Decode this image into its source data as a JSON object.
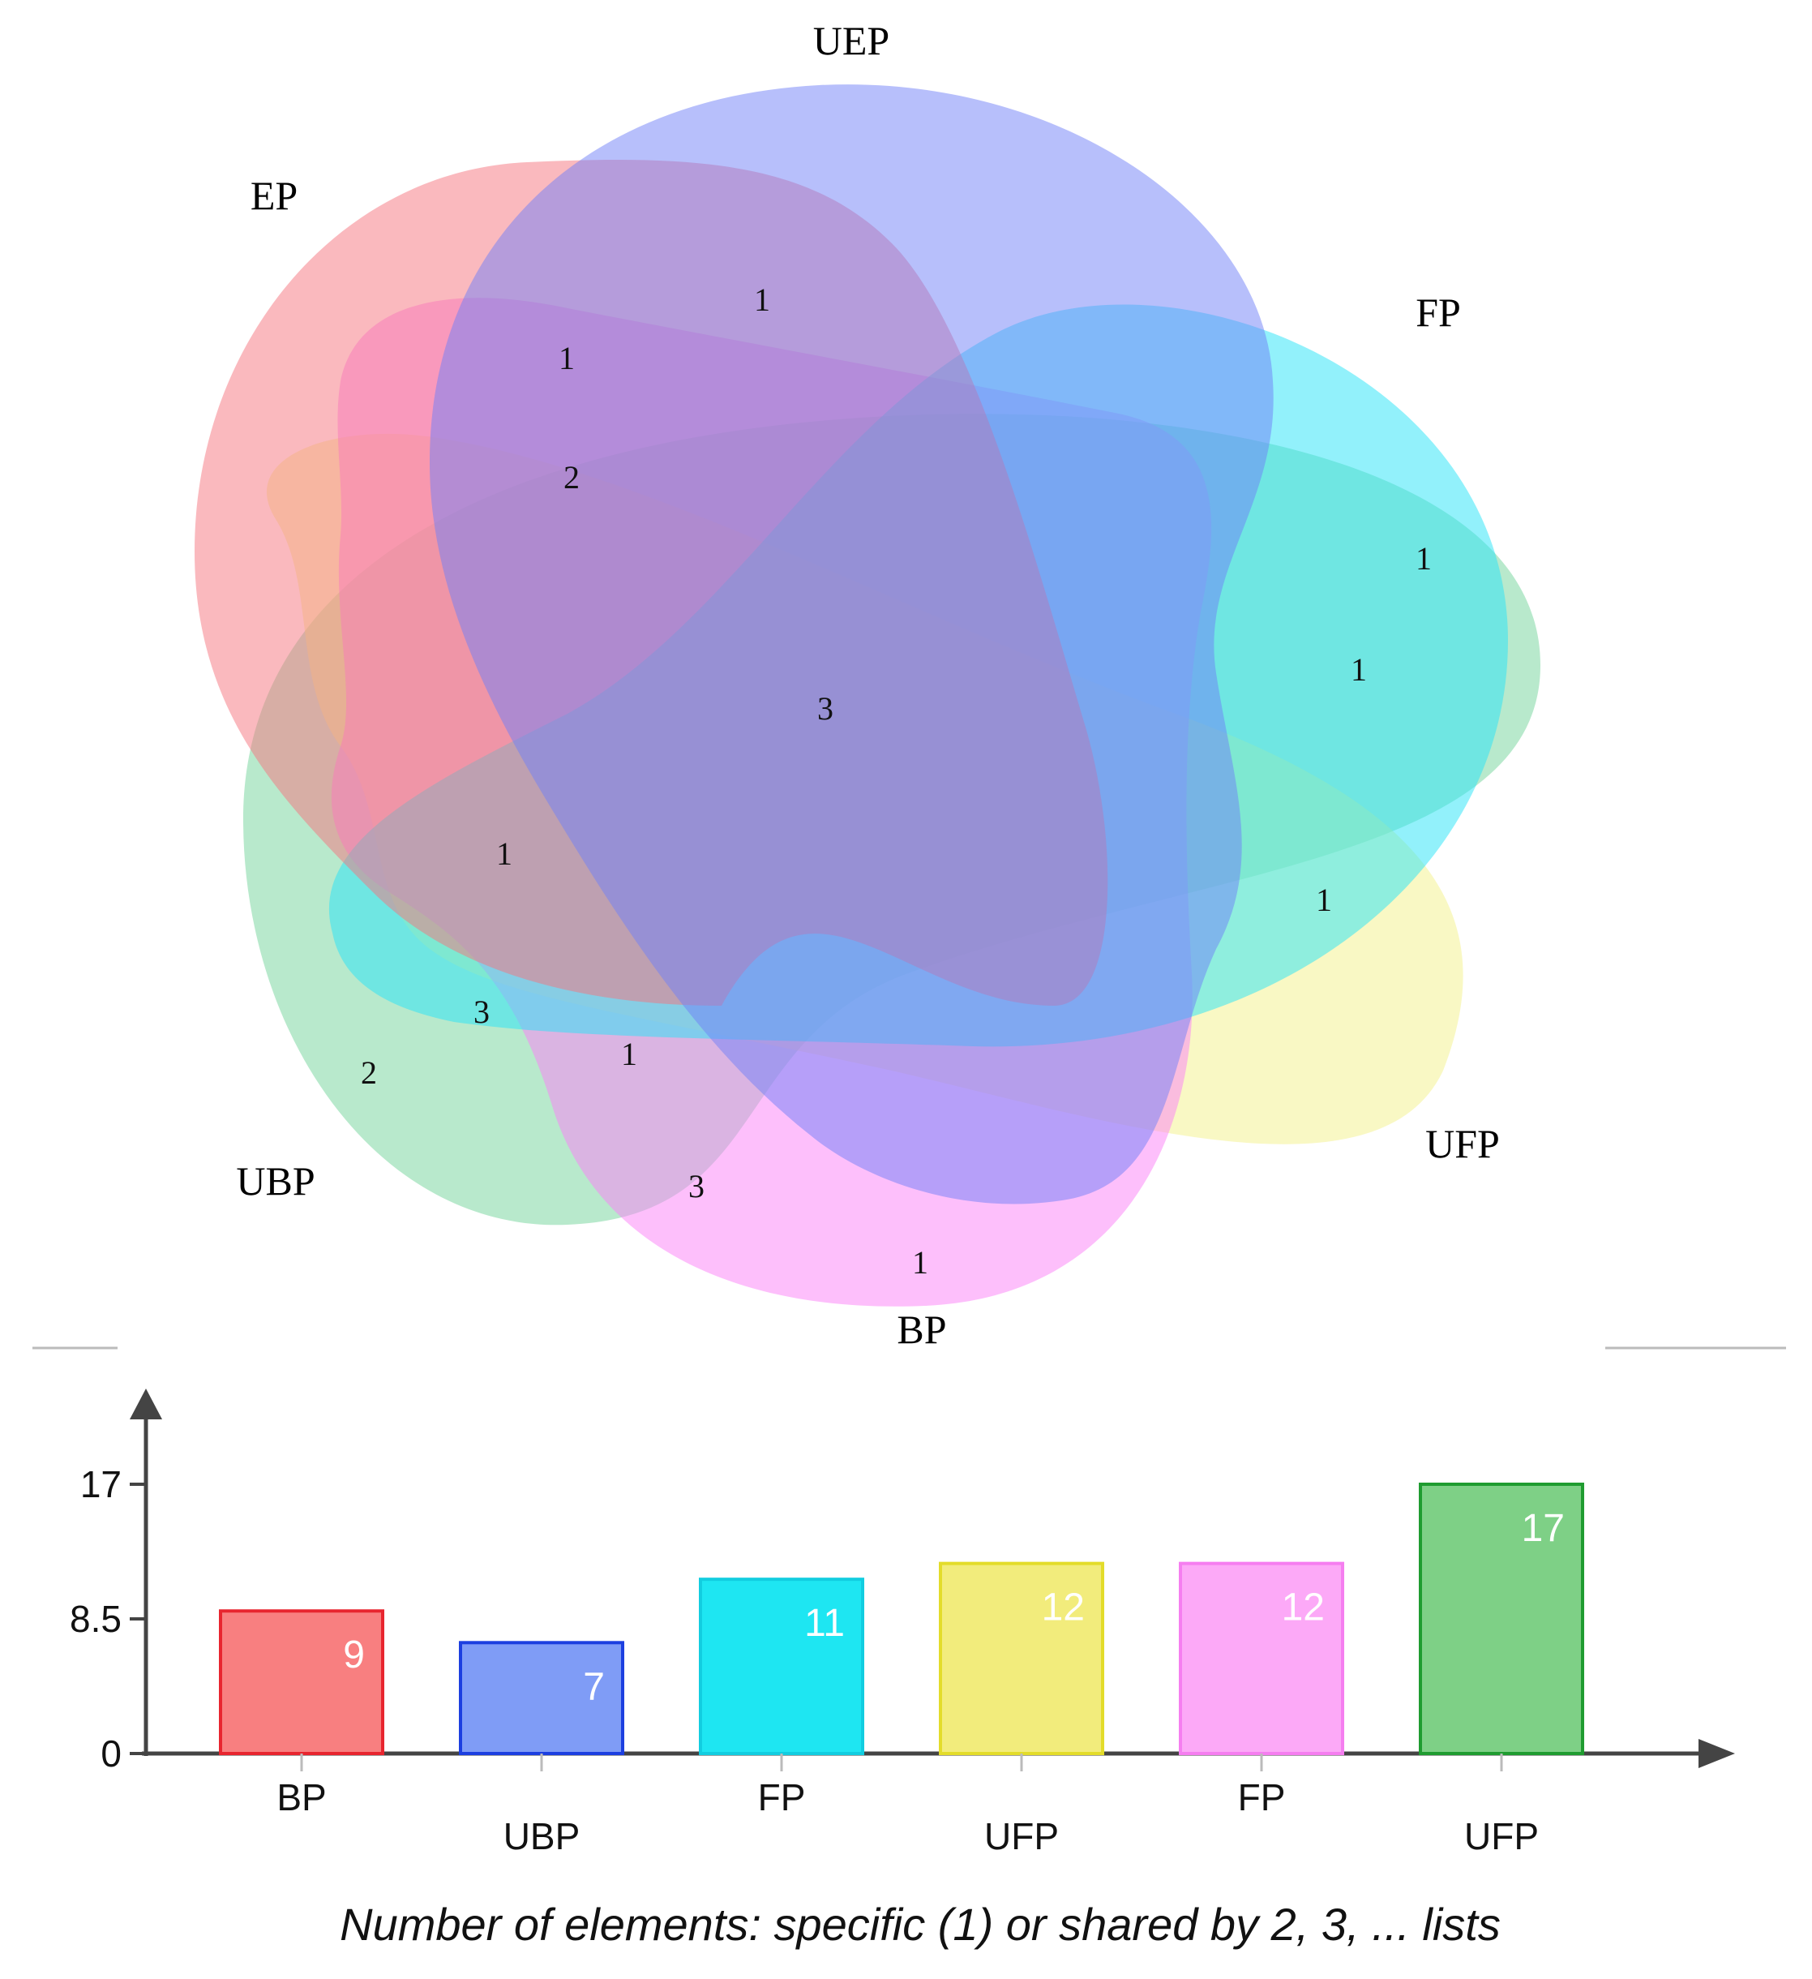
{
  "venn": {
    "sets": [
      {
        "id": "UEP",
        "label": "UEP",
        "color": "#6f80f7"
      },
      {
        "id": "EP",
        "label": "EP",
        "color": "#f6737e"
      },
      {
        "id": "FP",
        "label": "FP",
        "color": "#26e3f7"
      },
      {
        "id": "UFP",
        "label": "UFP",
        "color": "#f3f28a"
      },
      {
        "id": "BP",
        "label": "BP",
        "color": "#fb80f7"
      },
      {
        "id": "UBP",
        "label": "UBP",
        "color": "#72d49a"
      }
    ],
    "region_counts": [
      "1",
      "1",
      "2",
      "1",
      "1",
      "3",
      "1",
      "1",
      "3",
      "2",
      "1",
      "3",
      "1"
    ]
  },
  "chart_data": {
    "type": "bar",
    "categories": [
      "BP",
      "UBP",
      "FP",
      "UFP",
      "FP",
      "UFP"
    ],
    "values": [
      9,
      7,
      11,
      12,
      12,
      17
    ],
    "value_labels": [
      "9",
      "7",
      "11",
      "12",
      "12",
      "17"
    ],
    "colors": [
      "#f87f80",
      "#7f9cf6",
      "#1ee6f2",
      "#f2ec7c",
      "#fca9f7",
      "#7ed086"
    ],
    "edge_colors": [
      "#e8252f",
      "#1c3fe0",
      "#12cde0",
      "#e3dc2a",
      "#f57ef0",
      "#1f9c30"
    ],
    "yticks": [
      "0",
      "8.5",
      "17"
    ],
    "ylim": [
      0,
      17
    ],
    "xlabel": "Number of elements: specific (1) or shared by 2, 3, ... lists"
  }
}
